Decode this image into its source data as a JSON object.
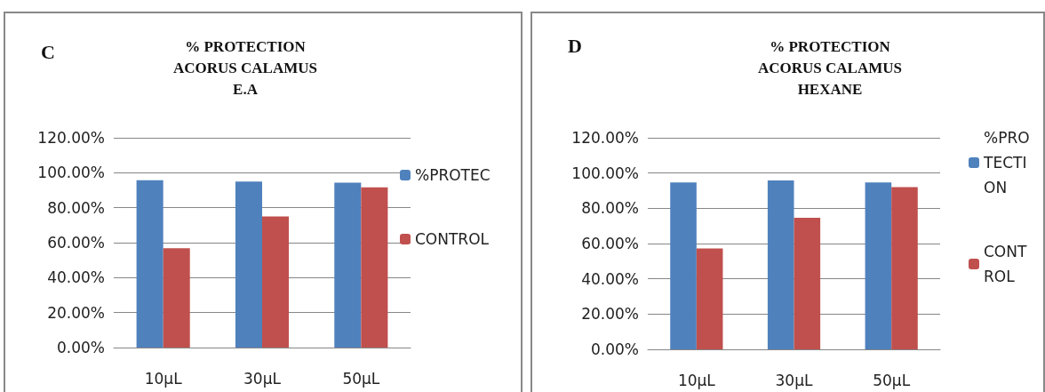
{
  "chart_data": [
    {
      "type": "bar",
      "title": "% PROTECTION\nACORUS CALAMUS\nE.A",
      "annotations": [
        "C"
      ],
      "categories": [
        "10µL",
        "30µL",
        "50µL"
      ],
      "series": [
        {
          "name": "%PROTEC",
          "color": "#4f81bd",
          "values": [
            95.7,
            94.9,
            94.3
          ]
        },
        {
          "name": "CONTROL",
          "color": "#c0504d",
          "values": [
            56.8,
            75.0,
            91.7
          ]
        }
      ],
      "ylim": [
        0,
        120
      ],
      "yticks": [
        {
          "value": 0,
          "label": "0.00%"
        },
        {
          "value": 20,
          "label": "20.00%"
        },
        {
          "value": 40,
          "label": "40.00%"
        },
        {
          "value": 60,
          "label": "60.00%"
        },
        {
          "value": 80,
          "label": "80.00%"
        },
        {
          "value": 100,
          "label": "100.00%"
        },
        {
          "value": 120,
          "label": "120.00%"
        }
      ],
      "grid": "y",
      "legend": "right"
    },
    {
      "type": "bar",
      "title": "% PROTECTION\nACORUS CALAMUS\nHEXANE",
      "annotations": [
        "D"
      ],
      "categories": [
        "10µL",
        "30µL",
        "50µL"
      ],
      "series": [
        {
          "name": "%PROTECTION",
          "color": "#4f81bd",
          "values": [
            94.7,
            95.8,
            94.7
          ]
        },
        {
          "name": "CONTROL",
          "color": "#c0504d",
          "values": [
            57.2,
            74.6,
            92.0
          ]
        }
      ],
      "ylim": [
        0,
        120
      ],
      "yticks": [
        {
          "value": 0,
          "label": "0.00%"
        },
        {
          "value": 20,
          "label": "20.00%"
        },
        {
          "value": 40,
          "label": "40.00%"
        },
        {
          "value": 60,
          "label": "60.00%"
        },
        {
          "value": 80,
          "label": "80.00%"
        },
        {
          "value": 100,
          "label": "100.00%"
        },
        {
          "value": 120,
          "label": "120.00%"
        }
      ],
      "grid": "y",
      "legend": "right"
    }
  ]
}
